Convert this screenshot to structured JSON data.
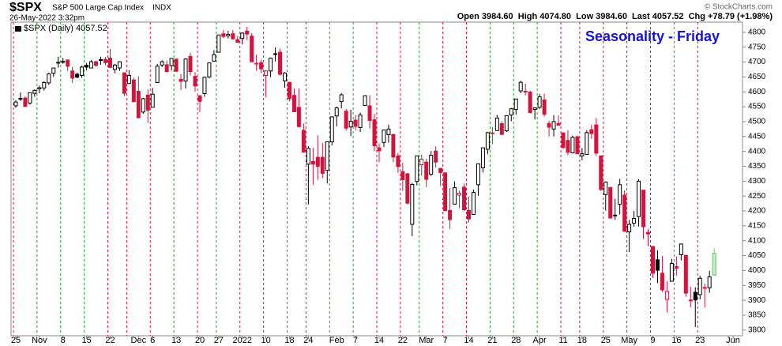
{
  "header": {
    "symbol": "$SPX",
    "name": "S&P 500 Large Cap Index",
    "exchange": "INDX",
    "timestamp": "26-May-2022 3:32pm",
    "quote": "Open 3984.60  High 4074.80  Low 3984.60  Last 4057.52  Chg +78.79 (+1.98%)",
    "copyright": "© StockCharts.com"
  },
  "chart_data": {
    "type": "candlestick",
    "title": "Seasonality - Friday",
    "legend": "$SPX (Daily) 4057.52",
    "up_color": "#000000",
    "down_color": "#d2143c",
    "live_color": "#6cc36c",
    "title_color": "#1414d2",
    "ylim": [
      3781,
      4834
    ],
    "yticks": [
      3800,
      3850,
      3900,
      3950,
      4000,
      4050,
      4100,
      4150,
      4200,
      4250,
      4300,
      4350,
      4400,
      4450,
      4500,
      4550,
      4600,
      4650,
      4700,
      4750,
      4800
    ],
    "xlim": [
      -1,
      154
    ],
    "xticks": [
      {
        "value": 0,
        "label": "25"
      },
      {
        "value": 5,
        "label": "Nov"
      },
      {
        "value": 10,
        "label": "8"
      },
      {
        "value": 15,
        "label": "15"
      },
      {
        "value": 20,
        "label": "22"
      },
      {
        "value": 26,
        "label": "Dec"
      },
      {
        "value": 29,
        "label": "6"
      },
      {
        "value": 34,
        "label": "13"
      },
      {
        "value": 39,
        "label": "20"
      },
      {
        "value": 43,
        "label": "27"
      },
      {
        "value": 48,
        "label": "2022"
      },
      {
        "value": 53,
        "label": "10"
      },
      {
        "value": 58,
        "label": "18"
      },
      {
        "value": 62,
        "label": "24"
      },
      {
        "value": 68,
        "label": "Feb"
      },
      {
        "value": 72,
        "label": "7"
      },
      {
        "value": 77,
        "label": "14"
      },
      {
        "value": 82,
        "label": "22"
      },
      {
        "value": 87,
        "label": "Mar"
      },
      {
        "value": 91,
        "label": "7"
      },
      {
        "value": 96,
        "label": "14"
      },
      {
        "value": 101,
        "label": "21"
      },
      {
        "value": 106,
        "label": "28"
      },
      {
        "value": 111,
        "label": "Apr"
      },
      {
        "value": 116,
        "label": "11"
      },
      {
        "value": 120,
        "label": "18"
      },
      {
        "value": 125,
        "label": "25"
      },
      {
        "value": 130,
        "label": "May"
      },
      {
        "value": 135,
        "label": "9"
      },
      {
        "value": 140,
        "label": "16"
      },
      {
        "value": 145,
        "label": "23"
      },
      {
        "value": 152,
        "label": "Jun"
      }
    ],
    "vlines": [
      {
        "x": -0.5,
        "color": "#d2143c"
      },
      {
        "x": 4.5,
        "color": "#2a9a2a"
      },
      {
        "x": 9.5,
        "color": "#2a9a2a"
      },
      {
        "x": 14.5,
        "color": "#2a9a2a"
      },
      {
        "x": 19.5,
        "color": "#d2143c"
      },
      {
        "x": 23.5,
        "color": "#d2143c"
      },
      {
        "x": 28.5,
        "color": "#d2143c"
      },
      {
        "x": 33.5,
        "color": "#2a9a2a"
      },
      {
        "x": 38.5,
        "color": "#d2143c"
      },
      {
        "x": 42.5,
        "color": "#2a9a2a"
      },
      {
        "x": 47.5,
        "color": "#d2143c"
      },
      {
        "x": 52.5,
        "color": "#d2143c"
      },
      {
        "x": 57.5,
        "color": "#2a9a2a"
      },
      {
        "x": 61.5,
        "color": "#d2143c"
      },
      {
        "x": 66.5,
        "color": "#2a9a2a"
      },
      {
        "x": 71.5,
        "color": "#2a9a2a"
      },
      {
        "x": 76.5,
        "color": "#d2143c"
      },
      {
        "x": 81.5,
        "color": "#d2143c"
      },
      {
        "x": 85.5,
        "color": "#2a9a2a"
      },
      {
        "x": 90.5,
        "color": "#d2143c"
      },
      {
        "x": 95.5,
        "color": "#d2143c"
      },
      {
        "x": 100.5,
        "color": "#2a9a2a"
      },
      {
        "x": 105.5,
        "color": "#2a9a2a"
      },
      {
        "x": 110.5,
        "color": "#2a9a2a"
      },
      {
        "x": 115.5,
        "color": "#d2143c"
      },
      {
        "x": 119.5,
        "color": "#d2143c"
      },
      {
        "x": 124.5,
        "color": "#d2143c"
      },
      {
        "x": 129.5,
        "color": "#d2143c"
      },
      {
        "x": 134.5,
        "color": "#d2143c"
      },
      {
        "x": 139.5,
        "color": "#2a9a2a"
      },
      {
        "x": 144.5,
        "color": "#d2143c"
      }
    ],
    "ohlc": [
      [
        4553,
        4572,
        4546,
        4566
      ],
      [
        4578,
        4598,
        4569,
        4575
      ],
      [
        4579,
        4585,
        4551,
        4551
      ],
      [
        4562,
        4598,
        4557,
        4597
      ],
      [
        4595,
        4608,
        4583,
        4605
      ],
      [
        4610,
        4621,
        4595,
        4614
      ],
      [
        4613,
        4636,
        4604,
        4631
      ],
      [
        4630,
        4664,
        4623,
        4660
      ],
      [
        4662,
        4681,
        4650,
        4680
      ],
      [
        4699,
        4718,
        4681,
        4697
      ],
      [
        4701,
        4714,
        4694,
        4702
      ],
      [
        4707,
        4708,
        4670,
        4686
      ],
      [
        4670,
        4684,
        4630,
        4646
      ],
      [
        4659,
        4665,
        4646,
        4649
      ],
      [
        4655,
        4688,
        4647,
        4683
      ],
      [
        4689,
        4697,
        4672,
        4683
      ],
      [
        4680,
        4707,
        4680,
        4701
      ],
      [
        4701,
        4705,
        4684,
        4689
      ],
      [
        4708,
        4718,
        4691,
        4705
      ],
      [
        4709,
        4717,
        4689,
        4698
      ],
      [
        4713,
        4744,
        4680,
        4682
      ],
      [
        4675,
        4694,
        4662,
        4690
      ],
      [
        4680,
        4702,
        4670,
        4701
      ],
      [
        4664,
        4664,
        4586,
        4595
      ],
      [
        4628,
        4672,
        4626,
        4655
      ],
      [
        4640,
        4647,
        4565,
        4567
      ],
      [
        4602,
        4652,
        4511,
        4513
      ],
      [
        4532,
        4580,
        4526,
        4577
      ],
      [
        4589,
        4608,
        4495,
        4538
      ],
      [
        4548,
        4613,
        4547,
        4592
      ],
      [
        4631,
        4694,
        4631,
        4686
      ],
      [
        4690,
        4706,
        4683,
        4701
      ],
      [
        4691,
        4705,
        4665,
        4668
      ],
      [
        4688,
        4713,
        4671,
        4712
      ],
      [
        4710,
        4711,
        4667,
        4669
      ],
      [
        4642,
        4660,
        4606,
        4635
      ],
      [
        4636,
        4713,
        4611,
        4710
      ],
      [
        4719,
        4731,
        4655,
        4668
      ],
      [
        4652,
        4666,
        4600,
        4620
      ],
      [
        4587,
        4587,
        4532,
        4568
      ],
      [
        4594,
        4651,
        4583,
        4649
      ],
      [
        4650,
        4698,
        4645,
        4697
      ],
      [
        4703,
        4740,
        4703,
        4725
      ],
      [
        4733,
        4791,
        4733,
        4791
      ],
      [
        4795,
        4807,
        4780,
        4786
      ],
      [
        4788,
        4805,
        4779,
        4793
      ],
      [
        4795,
        4808,
        4775,
        4778
      ],
      [
        4775,
        4787,
        4765,
        4766
      ],
      [
        4779,
        4800,
        4759,
        4797
      ],
      [
        4804,
        4818,
        4774,
        4794
      ],
      [
        4787,
        4797,
        4700,
        4701
      ],
      [
        4693,
        4725,
        4671,
        4696
      ],
      [
        4698,
        4708,
        4663,
        4677
      ],
      [
        4655,
        4673,
        4582,
        4670
      ],
      [
        4670,
        4715,
        4649,
        4713
      ],
      [
        4728,
        4749,
        4702,
        4726
      ],
      [
        4733,
        4745,
        4655,
        4659
      ],
      [
        4637,
        4666,
        4614,
        4663
      ],
      [
        4632,
        4632,
        4568,
        4577
      ],
      [
        4588,
        4612,
        4532,
        4533
      ],
      [
        4548,
        4611,
        4483,
        4483
      ],
      [
        4471,
        4494,
        4395,
        4398
      ],
      [
        4357,
        4417,
        4222,
        4410
      ],
      [
        4366,
        4412,
        4287,
        4357
      ],
      [
        4380,
        4454,
        4305,
        4350
      ],
      [
        4380,
        4429,
        4310,
        4326
      ],
      [
        4336,
        4432,
        4292,
        4432
      ],
      [
        4432,
        4517,
        4420,
        4516
      ],
      [
        4519,
        4550,
        4484,
        4546
      ],
      [
        4567,
        4596,
        4544,
        4590
      ],
      [
        4535,
        4542,
        4470,
        4478
      ],
      [
        4482,
        4540,
        4451,
        4501
      ],
      [
        4505,
        4521,
        4471,
        4484
      ],
      [
        4480,
        4530,
        4465,
        4522
      ],
      [
        4554,
        4588,
        4554,
        4587
      ],
      [
        4553,
        4589,
        4477,
        4504
      ],
      [
        4506,
        4527,
        4401,
        4419
      ],
      [
        4412,
        4427,
        4364,
        4402
      ],
      [
        4430,
        4473,
        4414,
        4472
      ],
      [
        4456,
        4490,
        4429,
        4475
      ],
      [
        4457,
        4458,
        4363,
        4381
      ],
      [
        4385,
        4395,
        4328,
        4349
      ],
      [
        4332,
        4362,
        4267,
        4305
      ],
      [
        4325,
        4327,
        4222,
        4226
      ],
      [
        4155,
        4294,
        4115,
        4289
      ],
      [
        4299,
        4385,
        4286,
        4385
      ],
      [
        4355,
        4389,
        4318,
        4374
      ],
      [
        4364,
        4375,
        4280,
        4306
      ],
      [
        4323,
        4401,
        4318,
        4387
      ],
      [
        4401,
        4417,
        4345,
        4364
      ],
      [
        4343,
        4344,
        4284,
        4329
      ],
      [
        4328,
        4328,
        4199,
        4201
      ],
      [
        4202,
        4277,
        4139,
        4171
      ],
      [
        4223,
        4299,
        4223,
        4278
      ],
      [
        4253,
        4268,
        4209,
        4260
      ],
      [
        4280,
        4292,
        4200,
        4204
      ],
      [
        4202,
        4248,
        4161,
        4173
      ],
      [
        4188,
        4272,
        4188,
        4262
      ],
      [
        4288,
        4358,
        4251,
        4358
      ],
      [
        4345,
        4412,
        4329,
        4412
      ],
      [
        4407,
        4465,
        4390,
        4463
      ],
      [
        4462,
        4481,
        4424,
        4461
      ],
      [
        4470,
        4522,
        4469,
        4512
      ],
      [
        4493,
        4501,
        4455,
        4457
      ],
      [
        4469,
        4520,
        4465,
        4520
      ],
      [
        4522,
        4546,
        4501,
        4543
      ],
      [
        4541,
        4576,
        4523,
        4576
      ],
      [
        4603,
        4637,
        4595,
        4632
      ],
      [
        4600,
        4627,
        4588,
        4602
      ],
      [
        4599,
        4604,
        4530,
        4530
      ],
      [
        4541,
        4546,
        4507,
        4546
      ],
      [
        4548,
        4593,
        4542,
        4583
      ],
      [
        4573,
        4594,
        4517,
        4525
      ],
      [
        4494,
        4503,
        4450,
        4481
      ],
      [
        4475,
        4522,
        4450,
        4500
      ],
      [
        4494,
        4521,
        4487,
        4488
      ],
      [
        4462,
        4464,
        4408,
        4413
      ],
      [
        4437,
        4471,
        4387,
        4397
      ],
      [
        4395,
        4453,
        4393,
        4447
      ],
      [
        4449,
        4453,
        4392,
        4392
      ],
      [
        4385,
        4411,
        4370,
        4392
      ],
      [
        4390,
        4471,
        4390,
        4463
      ],
      [
        4473,
        4489,
        4442,
        4460
      ],
      [
        4489,
        4512,
        4385,
        4394
      ],
      [
        4385,
        4386,
        4267,
        4272
      ],
      [
        4255,
        4299,
        4201,
        4297
      ],
      [
        4279,
        4279,
        4175,
        4176
      ],
      [
        4186,
        4241,
        4170,
        4184
      ],
      [
        4222,
        4308,
        4188,
        4288
      ],
      [
        4253,
        4269,
        4129,
        4132
      ],
      [
        4130,
        4170,
        4062,
        4155
      ],
      [
        4159,
        4200,
        4147,
        4175
      ],
      [
        4181,
        4307,
        4148,
        4300
      ],
      [
        4270,
        4270,
        4106,
        4147
      ],
      [
        4128,
        4140,
        4082,
        4123
      ],
      [
        4081,
        4081,
        3975,
        3991
      ],
      [
        4036,
        4068,
        3958,
        4001
      ],
      [
        3991,
        4049,
        3928,
        3935
      ],
      [
        3903,
        3964,
        3859,
        3930
      ],
      [
        3964,
        4039,
        3964,
        4024
      ],
      [
        4013,
        4047,
        3983,
        4008
      ],
      [
        4053,
        4090,
        4034,
        4089
      ],
      [
        4051,
        4051,
        3912,
        3924
      ],
      [
        3900,
        3946,
        3877,
        3901
      ],
      [
        3927,
        3944,
        3810,
        3901
      ],
      [
        3919,
        3982,
        3903,
        3974
      ],
      [
        3943,
        3956,
        3876,
        3941
      ],
      [
        3942,
        3999,
        3925,
        3979
      ],
      [
        3984.6,
        4074.8,
        3984.6,
        4057.52
      ]
    ]
  }
}
